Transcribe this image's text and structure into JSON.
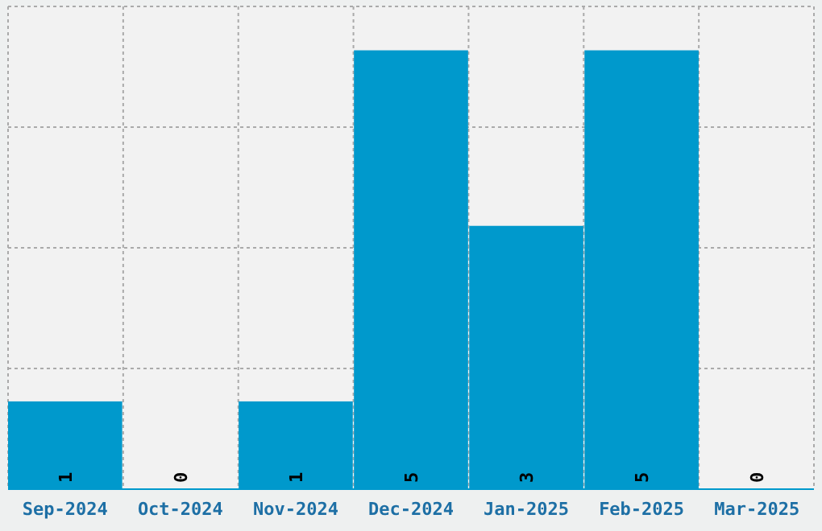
{
  "chart_data": {
    "type": "bar",
    "categories": [
      "Sep-2024",
      "Oct-2024",
      "Nov-2024",
      "Dec-2024",
      "Jan-2025",
      "Feb-2025",
      "Mar-2025"
    ],
    "values": [
      1,
      0,
      1,
      5,
      3,
      5,
      0
    ],
    "color": "#0099cc",
    "ylim": [
      0,
      5.5
    ],
    "yticks": [
      {
        "value": 0,
        "label": null
      },
      {
        "value": 1.375,
        "label": null
      },
      {
        "value": 2.75,
        "label": null
      },
      {
        "value": 4.125,
        "label": null
      },
      {
        "value": 5.5,
        "label": null
      }
    ],
    "tick_labels": "x",
    "grid": true,
    "data_labels": true
  }
}
